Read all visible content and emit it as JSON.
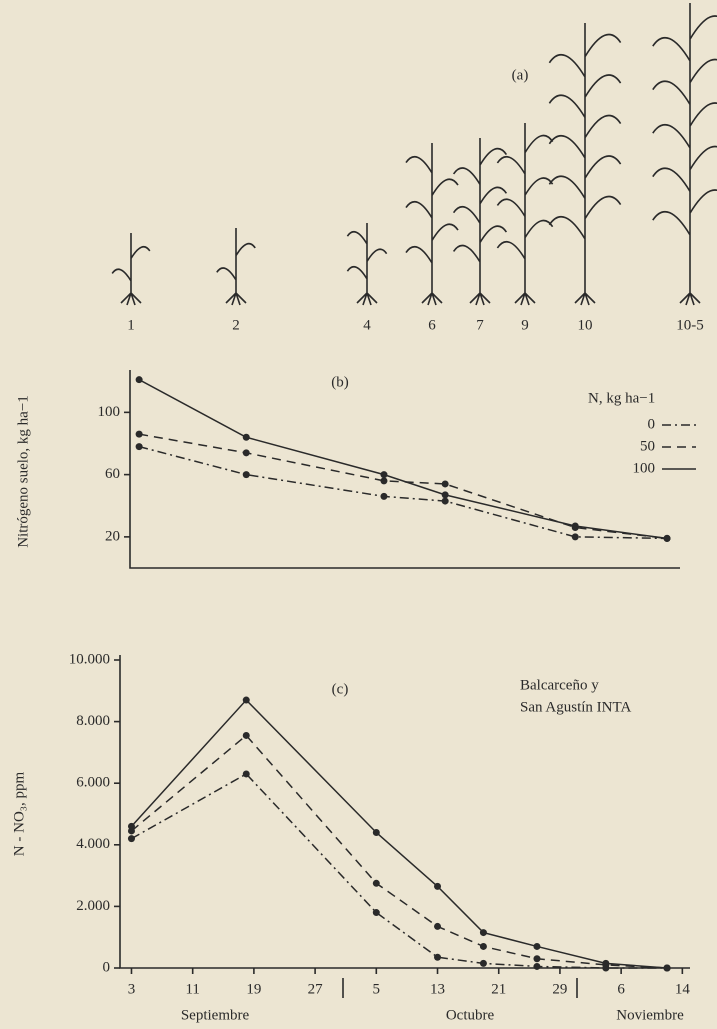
{
  "stages": {
    "label": "(a)",
    "items": [
      "1",
      "2",
      "4",
      "6",
      "7",
      "9",
      "10",
      "10-5"
    ]
  },
  "chart_data": [
    {
      "type": "line",
      "title": "(b)",
      "y_label": "Nitrógeno suelo, kg ha−1",
      "legend_title": "N, kg ha−1",
      "legend": "right",
      "xlim": [
        1.5,
        76
      ],
      "ylim": [
        0,
        124
      ],
      "yticks": [
        20,
        60,
        100
      ],
      "series": [
        {
          "name": "0",
          "color": "#2a2a2a",
          "dash": "dashdot",
          "x": [
            4,
            18,
            36,
            44,
            61,
            73
          ],
          "values": [
            78,
            60,
            46,
            43,
            20,
            19
          ]
        },
        {
          "name": "50",
          "color": "#2a2a2a",
          "dash": "dashed",
          "x": [
            4,
            18,
            36,
            44,
            61,
            73
          ],
          "values": [
            86,
            74,
            56,
            54,
            26,
            19
          ]
        },
        {
          "name": "100",
          "color": "#2a2a2a",
          "dash": "solid",
          "x": [
            4,
            18,
            36,
            44,
            61,
            73
          ],
          "values": [
            121,
            84,
            60,
            47,
            27,
            19
          ]
        }
      ]
    },
    {
      "type": "line",
      "title": "(c)",
      "annotation": [
        "Balcarceño y",
        "San Agustín INTA"
      ],
      "y_label": "N - NO₃, ppm",
      "xlim": [
        1.5,
        76
      ],
      "xticks": [
        {
          "value": 3,
          "label": "3"
        },
        {
          "value": 11,
          "label": "11"
        },
        {
          "value": 19,
          "label": "19"
        },
        {
          "value": 27,
          "label": "27"
        },
        {
          "value": 35,
          "label": "5"
        },
        {
          "value": 43,
          "label": "13"
        },
        {
          "value": 51,
          "label": "21"
        },
        {
          "value": 59,
          "label": "29"
        },
        {
          "value": 67,
          "label": "6"
        },
        {
          "value": 75,
          "label": "14"
        }
      ],
      "x_groups": [
        "Septiembre",
        "Octubre",
        "Noviembre"
      ],
      "ylim": [
        0,
        10000
      ],
      "yticks": [
        0,
        {
          "value": 2000,
          "label": "2.000"
        },
        {
          "value": 4000,
          "label": "4.000"
        },
        {
          "value": 6000,
          "label": "6.000"
        },
        {
          "value": 8000,
          "label": "8.000"
        },
        {
          "value": 10000,
          "label": "10.000"
        }
      ],
      "series": [
        {
          "name": "0",
          "color": "#2a2a2a",
          "dash": "dashdot",
          "x": [
            3,
            18,
            35,
            43,
            49,
            56,
            65,
            73
          ],
          "values": [
            4200,
            6300,
            1800,
            350,
            150,
            50,
            0,
            0
          ]
        },
        {
          "name": "50",
          "color": "#2a2a2a",
          "dash": "dashed",
          "x": [
            3,
            18,
            35,
            43,
            49,
            56,
            65,
            73
          ],
          "values": [
            4450,
            7550,
            2750,
            1350,
            700,
            300,
            100,
            0
          ]
        },
        {
          "name": "100",
          "color": "#2a2a2a",
          "dash": "solid",
          "x": [
            3,
            18,
            35,
            43,
            49,
            56,
            65,
            73
          ],
          "values": [
            4600,
            8700,
            4400,
            2650,
            1150,
            700,
            150,
            0
          ]
        }
      ]
    }
  ]
}
